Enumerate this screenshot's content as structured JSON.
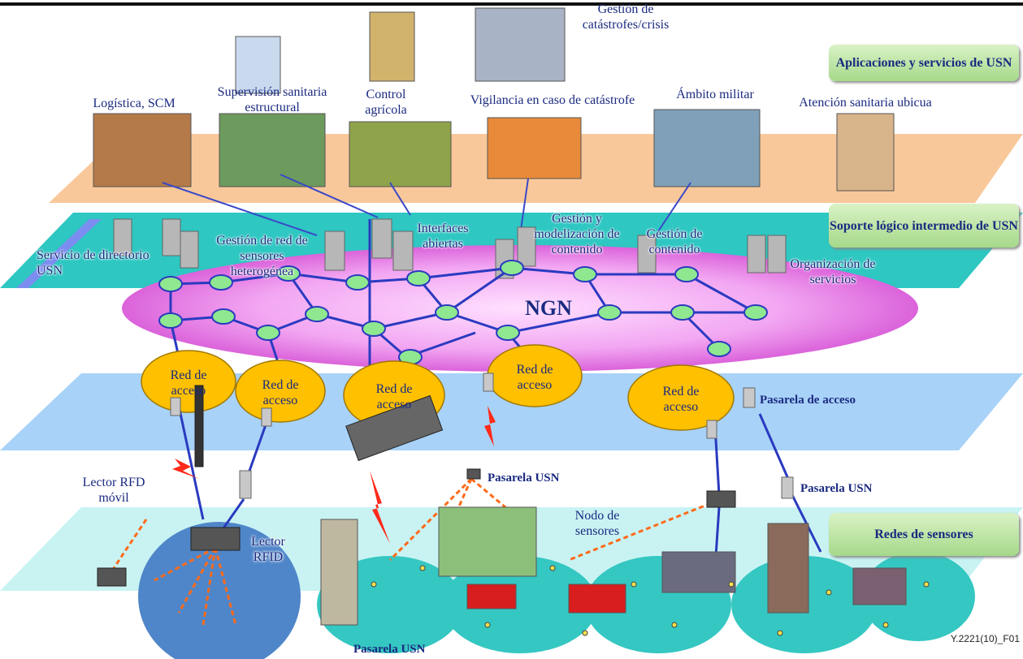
{
  "layers": {
    "applications": "Aplicaciones y servicios de USN",
    "middleware": "Soporte lógico intermedio de USN",
    "sensor_networks": "Redes de sensores"
  },
  "applications": [
    "Gestión de catástrofes/crisis",
    "Logística, SCM",
    "Supervisión sanitaria estructural",
    "Control agrícola",
    "Vigilancia en caso de catástrofe",
    "Ámbito militar",
    "Atención sanitaria ubicua"
  ],
  "middleware": [
    "Servicio de directorio USN",
    "Gestión de red de sensores heterogénea",
    "Interfaces abiertas",
    "Gestión y modelización de contenido",
    "Gestión de contenido",
    "Organización de servicios"
  ],
  "ngn": "NGN",
  "access_networks": [
    "Red de acceso",
    "Red de acceso",
    "Red de acceso",
    "Red de acceso",
    "Red de acceso"
  ],
  "access_gateway": "Pasarela de acceso",
  "sensor_labels": {
    "mobile_reader": "Lector RFD móvil",
    "reader": "Lector RFID",
    "gateway_center": "Pasarela USN",
    "gateway_right": "Pasarela USN",
    "gateway_bottom": "Pasarela USN",
    "node": "Nodo de sensores"
  },
  "figure_id": "Y.2221(10)_F01"
}
